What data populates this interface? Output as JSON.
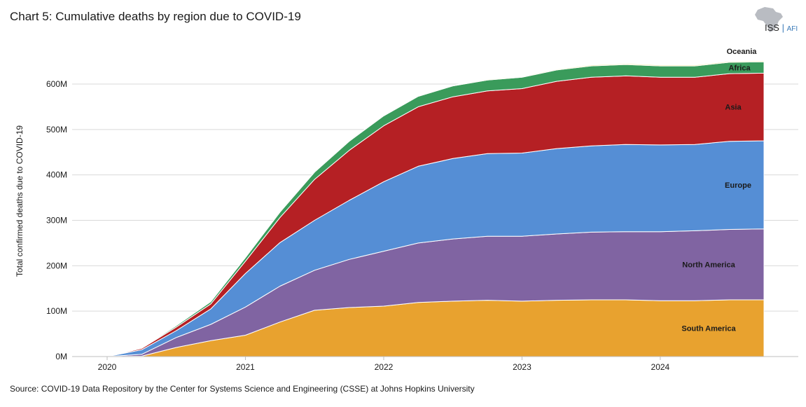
{
  "header": {
    "title": "Chart 5: Cumulative deaths by region due to COVID-19",
    "logo_main": "ISS",
    "logo_sub": "AFI"
  },
  "footer": {
    "source": "Source: COVID-19 Data Repository by the Center for Systems Science and Engineering (CSSE) at Johns Hopkins University"
  },
  "chart_data": {
    "type": "area",
    "stacked": true,
    "title": "Chart 5: Cumulative deaths by region due to COVID-19",
    "xlabel": "",
    "ylabel": "Total confirmed deaths due to COVID-19",
    "ylim": [
      0,
      650
    ],
    "y_unit": "M",
    "xlim": [
      2020.0,
      2024.75
    ],
    "x_ticks": [
      2020,
      2021,
      2022,
      2023,
      2024
    ],
    "x_tick_labels": [
      "2020",
      "2021",
      "2022",
      "2023",
      "2024"
    ],
    "y_ticks": [
      0,
      100,
      200,
      300,
      400,
      500,
      600
    ],
    "y_tick_labels": [
      "0M",
      "100M",
      "200M",
      "300M",
      "400M",
      "500M",
      "600M"
    ],
    "grid": true,
    "legend": "inline labels at right",
    "x": [
      2020.0,
      2020.25,
      2020.5,
      2020.75,
      2021.0,
      2021.25,
      2021.5,
      2021.75,
      2022.0,
      2022.25,
      2022.5,
      2022.75,
      2023.0,
      2023.25,
      2023.5,
      2023.75,
      2024.0,
      2024.25,
      2024.5,
      2024.75
    ],
    "series": [
      {
        "name": "South America",
        "color": "#E8A22F",
        "values": [
          0,
          1,
          20,
          35,
          47,
          76,
          102,
          108,
          111,
          119,
          122,
          124,
          122,
          124,
          125,
          125,
          123,
          123,
          125,
          125
        ]
      },
      {
        "name": "North America",
        "color": "#8064A2",
        "values": [
          0,
          4,
          22,
          36,
          62,
          79,
          88,
          106,
          121,
          131,
          137,
          141,
          143,
          146,
          149,
          150,
          152,
          154,
          155,
          156
        ]
      },
      {
        "name": "Europe",
        "color": "#558ED5",
        "values": [
          0,
          10,
          15,
          34,
          74,
          96,
          110,
          130,
          153,
          169,
          177,
          182,
          183,
          188,
          190,
          192,
          191,
          190,
          194,
          194
        ]
      },
      {
        "name": "Asia",
        "color": "#B52024",
        "values": [
          0,
          3,
          8,
          11,
          27,
          55,
          90,
          110,
          123,
          131,
          136,
          138,
          142,
          148,
          151,
          151,
          149,
          148,
          149,
          149
        ]
      },
      {
        "name": "Africa",
        "color": "#3A9B5B",
        "values": [
          0,
          1,
          3,
          5,
          8,
          12,
          16,
          20,
          22,
          23,
          24,
          24,
          25,
          25,
          25,
          25,
          25,
          25,
          25,
          25
        ]
      },
      {
        "name": "Oceania",
        "color": "#F0E080",
        "values": [
          0,
          0,
          0.1,
          0.2,
          0.3,
          0.5,
          0.8,
          1.0,
          1.2,
          1.4,
          1.5,
          1.6,
          1.7,
          1.8,
          1.9,
          2.0,
          2.0,
          2.0,
          2.0,
          2.0
        ]
      }
    ],
    "labels": [
      "South America",
      "North America",
      "Europe",
      "Asia",
      "Africa",
      "Oceania"
    ]
  }
}
